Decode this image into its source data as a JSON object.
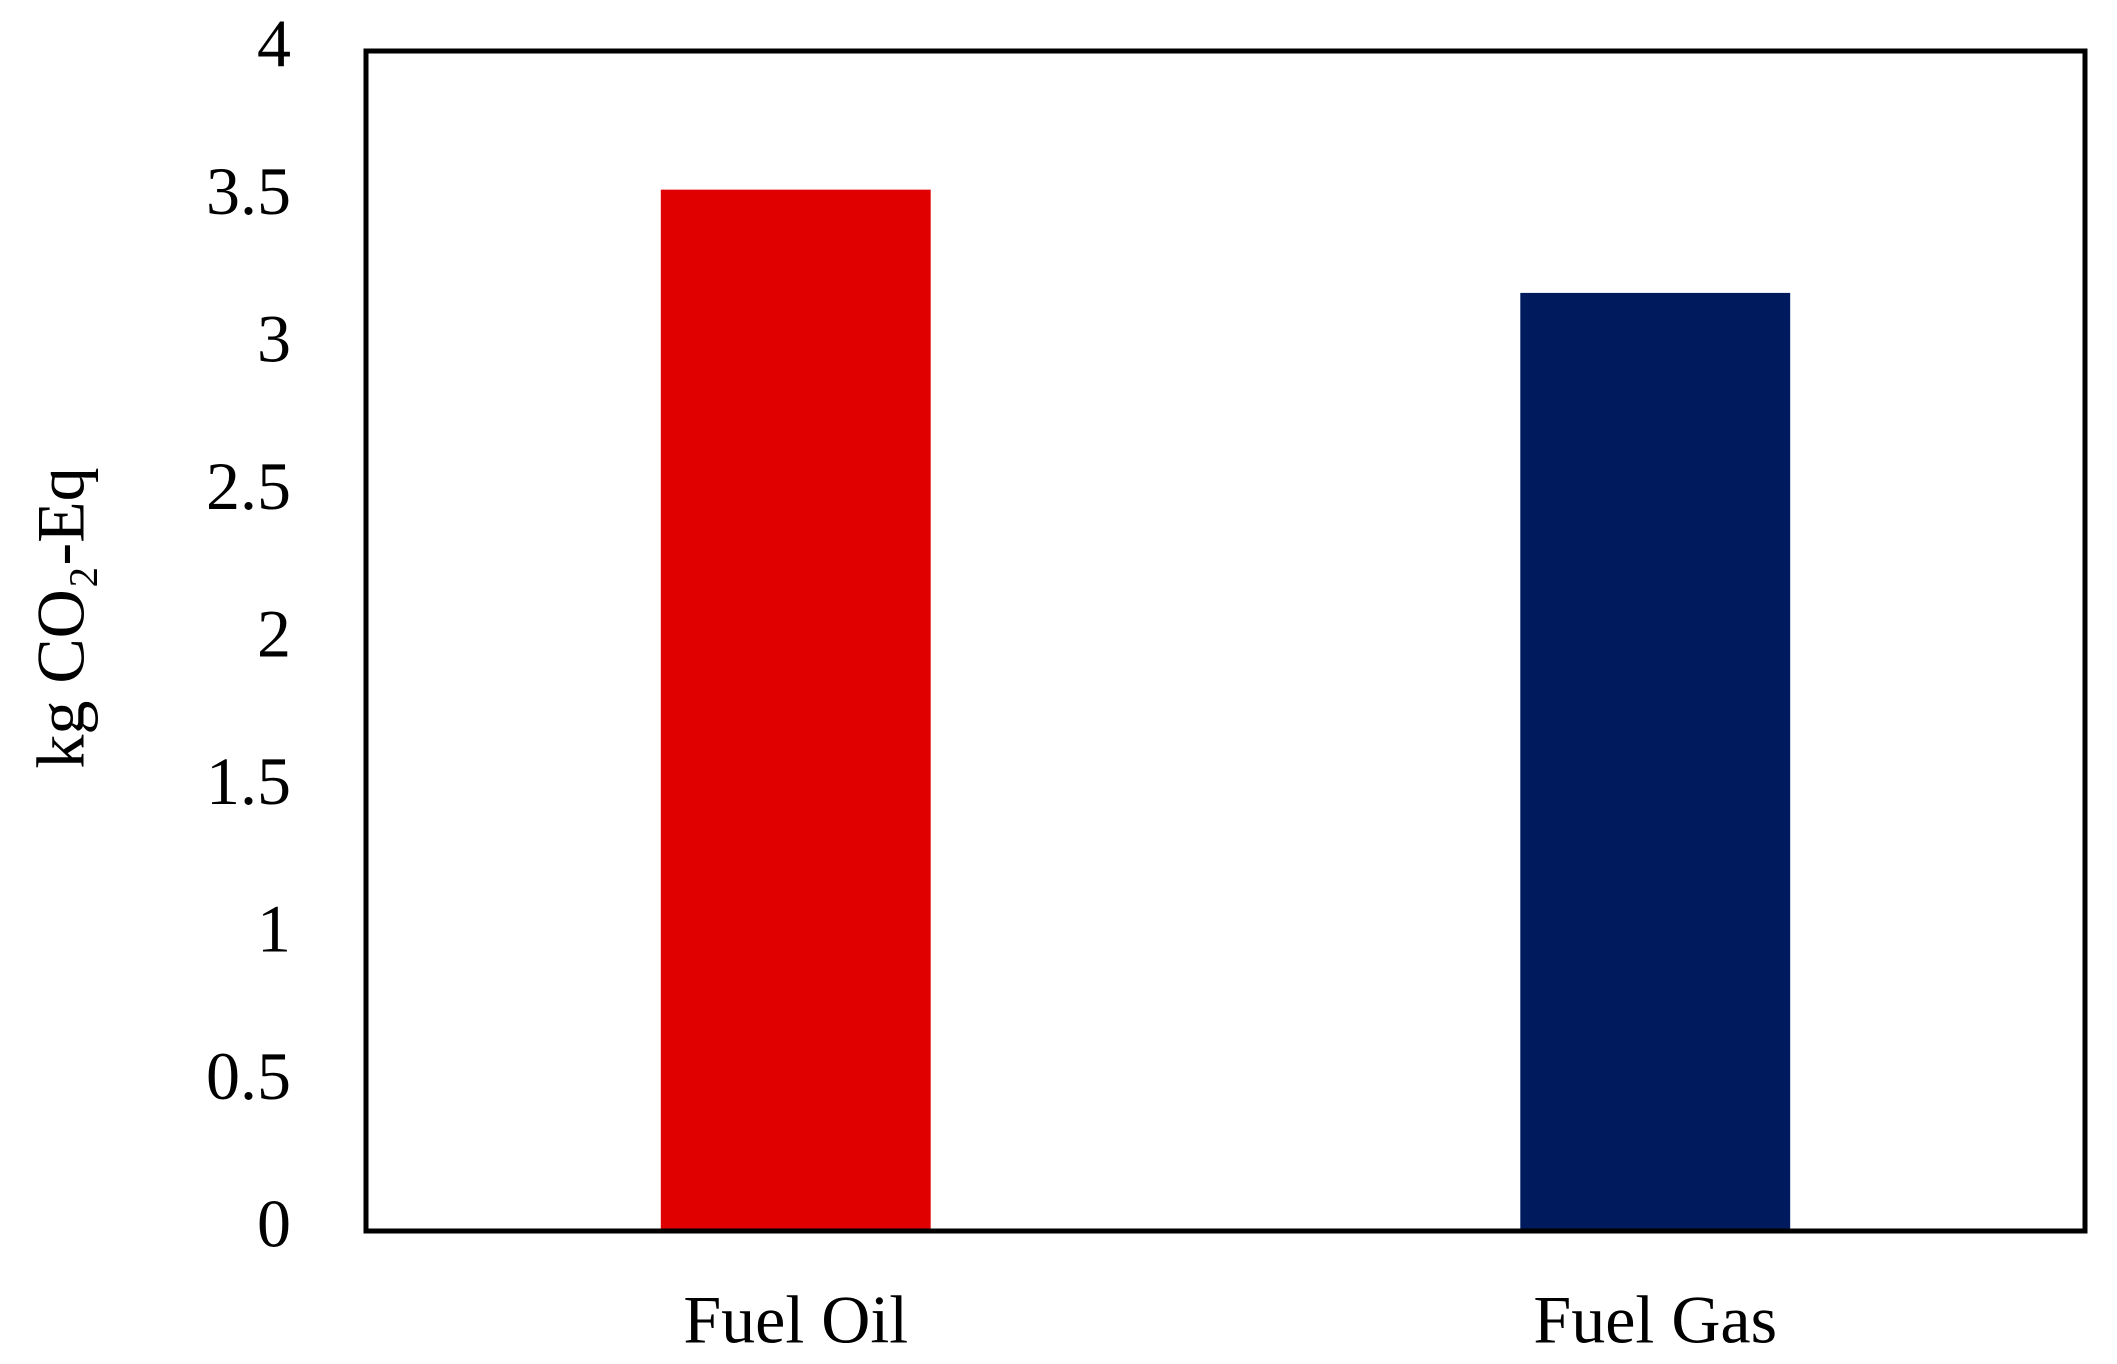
{
  "chart_data": {
    "type": "bar",
    "ylabel": "kg CO₂-Eq",
    "categories": [
      "Fuel Oil",
      "Fuel Gas"
    ],
    "values": [
      3.53,
      3.18
    ],
    "colors": [
      "#e00000",
      "#001a5e"
    ],
    "ylim": [
      0,
      4
    ],
    "yticks": [
      0,
      0.5,
      1,
      1.5,
      2,
      2.5,
      3,
      3.5,
      4
    ],
    "grid": false
  }
}
